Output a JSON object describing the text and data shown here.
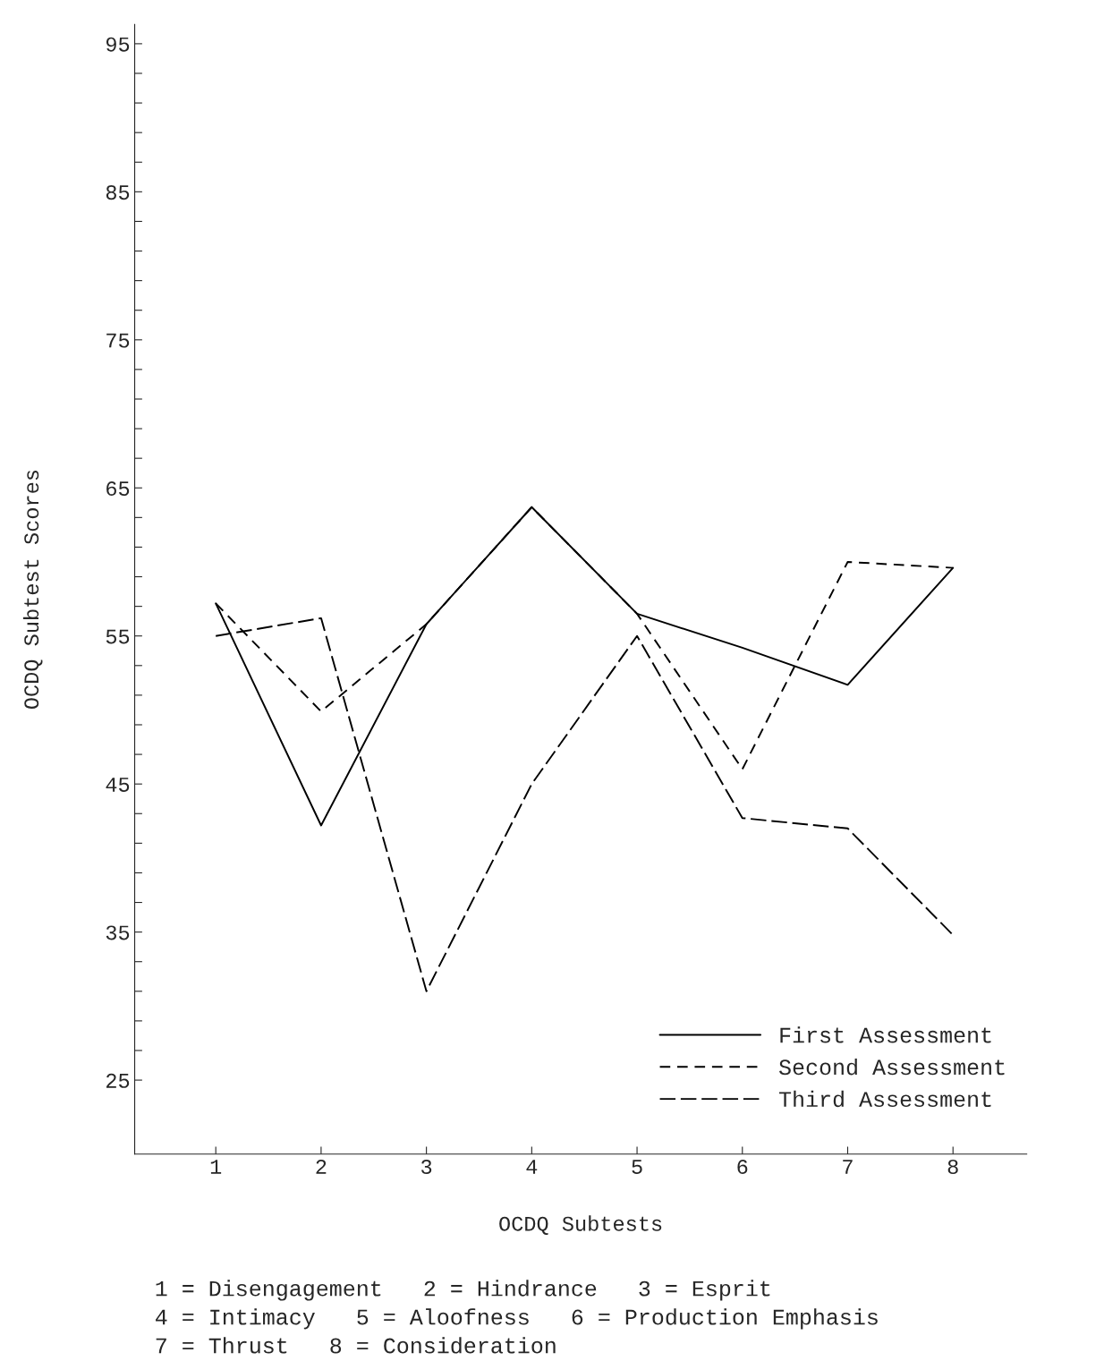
{
  "chart_data": {
    "type": "line",
    "xlabel": "OCDQ Subtests",
    "ylabel": "OCDQ Subtest Scores",
    "categories": [
      "1",
      "2",
      "3",
      "4",
      "5",
      "6",
      "7",
      "8"
    ],
    "series": [
      {
        "name": "First Assessment",
        "color": "#000000",
        "line_style": "solid",
        "values": [
          57.2,
          42.2,
          55.8,
          63.7,
          56.5,
          54.2,
          51.7,
          59.6
        ]
      },
      {
        "name": "Second Assessment",
        "color": "#000000",
        "line_style": "dashed",
        "values": [
          57.2,
          49.9,
          55.8,
          63.7,
          56.5,
          46,
          60,
          59.6
        ]
      },
      {
        "name": "Third Assessment",
        "color": "#000000",
        "line_style": "longdash",
        "values": [
          55,
          56.2,
          31,
          45,
          55,
          42.7,
          42,
          34.8
        ]
      }
    ],
    "ylim": [
      20,
      96.3
    ],
    "yticks": [
      25,
      {
        "value": 27,
        "label": null
      },
      {
        "value": 29,
        "label": null
      },
      {
        "value": 31,
        "label": null
      },
      {
        "value": 33,
        "label": null
      },
      35,
      {
        "value": 37,
        "label": null
      },
      {
        "value": 39,
        "label": null
      },
      {
        "value": 41,
        "label": null
      },
      {
        "value": 43,
        "label": null
      },
      45,
      {
        "value": 47,
        "label": null
      },
      {
        "value": 49,
        "label": null
      },
      {
        "value": 51,
        "label": null
      },
      {
        "value": 53,
        "label": null
      },
      55,
      {
        "value": 57,
        "label": null
      },
      {
        "value": 59,
        "label": null
      },
      {
        "value": 61,
        "label": null
      },
      {
        "value": 63,
        "label": null
      },
      65,
      {
        "value": 67,
        "label": null
      },
      {
        "value": 69,
        "label": null
      },
      {
        "value": 71,
        "label": null
      },
      {
        "value": 73,
        "label": null
      },
      75,
      {
        "value": 77,
        "label": null
      },
      {
        "value": 79,
        "label": null
      },
      {
        "value": 81,
        "label": null
      },
      {
        "value": 83,
        "label": null
      },
      85,
      {
        "value": 87,
        "label": null
      },
      {
        "value": 89,
        "label": null
      },
      {
        "value": 91,
        "label": null
      },
      {
        "value": 93,
        "label": null
      },
      95
    ],
    "grid": false,
    "legend": "bottom right",
    "marker": "none",
    "annotations": [
      "1 = Disengagement   2 = Hindrance   3 = Esprit",
      "4 = Intimacy   5 = Aloofness   6 = Production Emphasis",
      "7 = Thrust   8 = Consideration"
    ]
  }
}
